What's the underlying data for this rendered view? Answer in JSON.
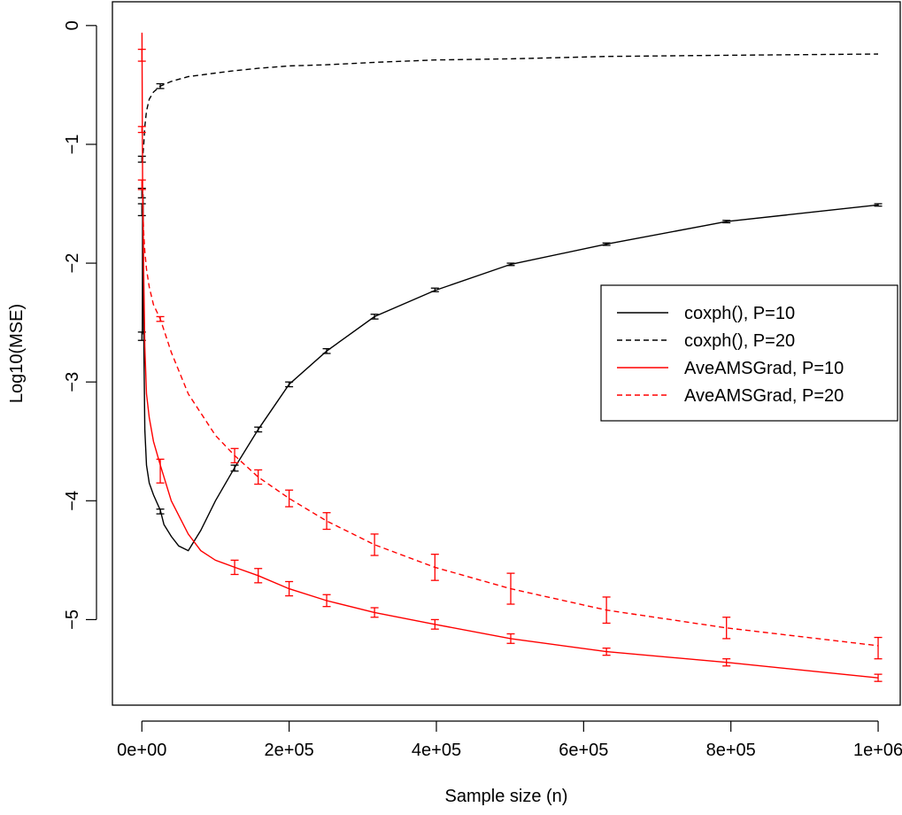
{
  "chart_data": {
    "type": "line",
    "title": "",
    "xlabel": "Sample size (n)",
    "ylabel": "Log10(MSE)",
    "xlim": [
      -40000,
      1030000
    ],
    "ylim": [
      -5.72,
      0.2
    ],
    "xticks": [
      0,
      200000,
      400000,
      600000,
      800000,
      1000000
    ],
    "xtick_labels": [
      "0e+00",
      "2e+05",
      "4e+05",
      "6e+05",
      "8e+05",
      "1e+06"
    ],
    "yticks": [
      0,
      -1,
      -2,
      -3,
      -4,
      -5
    ],
    "ytick_labels": [
      "0",
      "−1",
      "−2",
      "−3",
      "−4",
      "−5"
    ],
    "grid": false,
    "legend_position": "right",
    "series": [
      {
        "name": "coxph(), P=10",
        "color": "#000000",
        "dash": "solid",
        "x": [
          600,
          1000,
          1600,
          2500,
          4000,
          6300,
          10000,
          15800,
          25000,
          30000,
          40000,
          50000,
          63000,
          80000,
          100000,
          126000,
          158000,
          200000,
          251000,
          316000,
          398000,
          501000,
          631000,
          794000,
          1000000
        ],
        "y": [
          -2.6,
          -1.55,
          -1.42,
          -2.6,
          -3.4,
          -3.7,
          -3.85,
          -3.95,
          -4.08,
          -4.2,
          -4.3,
          -4.38,
          -4.42,
          -4.25,
          -4.0,
          -3.72,
          -3.4,
          -3.02,
          -2.74,
          -2.45,
          -2.23,
          -2.01,
          -1.84,
          -1.65,
          -1.51
        ],
        "errorbars": [
          {
            "x": 0,
            "lo": -2.65,
            "hi": -2.58
          },
          {
            "x": 0,
            "lo": -1.6,
            "hi": -1.5
          },
          {
            "x": 0,
            "lo": -1.45,
            "hi": -1.37
          },
          {
            "x": 0,
            "lo": -1.15,
            "hi": -1.1
          },
          {
            "x": 25000,
            "lo": -4.11,
            "hi": -4.07
          },
          {
            "x": 126000,
            "lo": -3.75,
            "hi": -3.7
          },
          {
            "x": 158000,
            "lo": -3.42,
            "hi": -3.38
          },
          {
            "x": 200000,
            "lo": -3.04,
            "hi": -3.0
          },
          {
            "x": 251000,
            "lo": -2.76,
            "hi": -2.72
          },
          {
            "x": 316000,
            "lo": -2.47,
            "hi": -2.43
          },
          {
            "x": 398000,
            "lo": -2.24,
            "hi": -2.21
          },
          {
            "x": 501000,
            "lo": -2.02,
            "hi": -2.0
          },
          {
            "x": 631000,
            "lo": -1.85,
            "hi": -1.83
          },
          {
            "x": 794000,
            "lo": -1.66,
            "hi": -1.64
          },
          {
            "x": 1000000,
            "lo": -1.52,
            "hi": -1.5
          }
        ]
      },
      {
        "name": "coxph(), P=20",
        "color": "#000000",
        "dash": "dashed",
        "x": [
          600,
          1000,
          2500,
          4000,
          6300,
          10000,
          15800,
          25000,
          40000,
          63000,
          100000,
          126000,
          158000,
          200000,
          251000,
          316000,
          398000,
          501000,
          631000,
          794000,
          1000000
        ],
        "y": [
          -1.15,
          -1.12,
          -1.0,
          -0.85,
          -0.72,
          -0.62,
          -0.56,
          -0.51,
          -0.47,
          -0.43,
          -0.4,
          -0.38,
          -0.36,
          -0.34,
          -0.33,
          -0.31,
          -0.29,
          -0.28,
          -0.26,
          -0.25,
          -0.24
        ],
        "errorbars": [
          {
            "x": 25000,
            "lo": -0.53,
            "hi": -0.49
          }
        ]
      },
      {
        "name": "AveAMSGrad, P=10",
        "color": "#ff0000",
        "dash": "solid",
        "x": [
          100,
          600,
          1000,
          1600,
          2500,
          4000,
          6300,
          10000,
          15800,
          25000,
          40000,
          63000,
          80000,
          100000,
          126000,
          158000,
          200000,
          251000,
          316000,
          398000,
          501000,
          631000,
          794000,
          1000000
        ],
        "y": [
          -0.06,
          -0.85,
          -1.32,
          -1.65,
          -2.1,
          -2.7,
          -3.1,
          -3.3,
          -3.5,
          -3.7,
          -4.0,
          -4.28,
          -4.42,
          -4.5,
          -4.56,
          -4.63,
          -4.74,
          -4.84,
          -4.94,
          -5.04,
          -5.16,
          -5.27,
          -5.36,
          -5.49
        ],
        "errorbars": [
          {
            "x": 0,
            "lo": -0.3,
            "hi": -0.2
          },
          {
            "x": 0,
            "lo": -0.9,
            "hi": -0.85
          },
          {
            "x": 25000,
            "lo": -3.85,
            "hi": -3.65
          },
          {
            "x": 126000,
            "lo": -4.62,
            "hi": -4.5
          },
          {
            "x": 158000,
            "lo": -4.69,
            "hi": -4.57
          },
          {
            "x": 200000,
            "lo": -4.8,
            "hi": -4.68
          },
          {
            "x": 251000,
            "lo": -4.89,
            "hi": -4.79
          },
          {
            "x": 316000,
            "lo": -4.98,
            "hi": -4.9
          },
          {
            "x": 398000,
            "lo": -5.08,
            "hi": -5.0
          },
          {
            "x": 501000,
            "lo": -5.2,
            "hi": -5.12
          },
          {
            "x": 631000,
            "lo": -5.3,
            "hi": -5.24
          },
          {
            "x": 794000,
            "lo": -5.39,
            "hi": -5.33
          },
          {
            "x": 1000000,
            "lo": -5.52,
            "hi": -5.46
          }
        ]
      },
      {
        "name": "AveAMSGrad, P=20",
        "color": "#ff0000",
        "dash": "dashed",
        "x": [
          600,
          1000,
          1600,
          2500,
          4000,
          6300,
          10000,
          15800,
          25000,
          40000,
          63000,
          100000,
          126000,
          158000,
          200000,
          251000,
          316000,
          398000,
          501000,
          631000,
          794000,
          1000000
        ],
        "y": [
          -1.35,
          -1.4,
          -1.6,
          -1.75,
          -1.9,
          -2.05,
          -2.2,
          -2.35,
          -2.47,
          -2.75,
          -3.1,
          -3.45,
          -3.62,
          -3.8,
          -3.98,
          -4.17,
          -4.37,
          -4.56,
          -4.74,
          -4.92,
          -5.07,
          -5.22
        ],
        "errorbars": [
          {
            "x": 0,
            "lo": -1.38,
            "hi": -1.3
          },
          {
            "x": 25000,
            "lo": -2.49,
            "hi": -2.45
          },
          {
            "x": 126000,
            "lo": -3.68,
            "hi": -3.56
          },
          {
            "x": 158000,
            "lo": -3.86,
            "hi": -3.74
          },
          {
            "x": 200000,
            "lo": -4.05,
            "hi": -3.91
          },
          {
            "x": 251000,
            "lo": -4.24,
            "hi": -4.1
          },
          {
            "x": 316000,
            "lo": -4.46,
            "hi": -4.28
          },
          {
            "x": 398000,
            "lo": -4.67,
            "hi": -4.45
          },
          {
            "x": 501000,
            "lo": -4.87,
            "hi": -4.61
          },
          {
            "x": 631000,
            "lo": -5.03,
            "hi": -4.81
          },
          {
            "x": 794000,
            "lo": -5.16,
            "hi": -4.98
          },
          {
            "x": 1000000,
            "lo": -5.33,
            "hi": -5.15
          }
        ]
      }
    ]
  }
}
